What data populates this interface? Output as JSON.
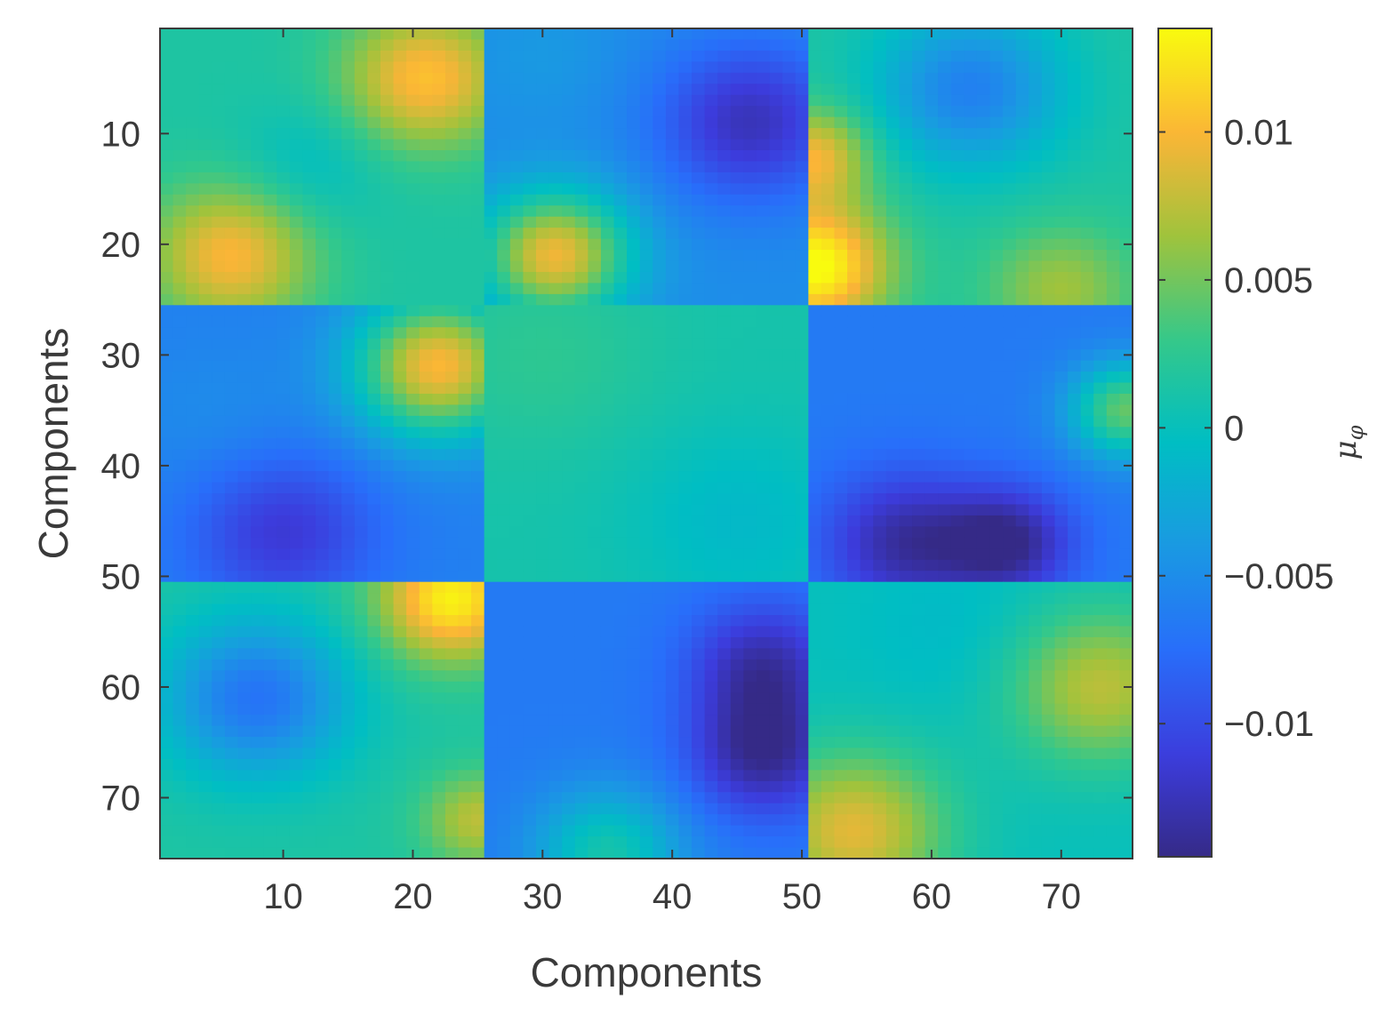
{
  "chart_data": {
    "type": "heatmap",
    "title": "",
    "xlabel": "Components",
    "ylabel": "Components",
    "colorbar_label": "μφ",
    "colorbar_label_main": "μ",
    "colorbar_label_sub": "φ",
    "colormap": "parula",
    "n_rows": 75,
    "n_cols": 75,
    "block_size": 25,
    "xlim": [
      0.5,
      75.5
    ],
    "ylim": [
      0.5,
      75.5
    ],
    "y_reversed": true,
    "clim": [
      -0.0145,
      0.0135
    ],
    "x_ticks": [
      10,
      20,
      30,
      40,
      50,
      60,
      70
    ],
    "x_tick_labels": [
      "10",
      "20",
      "30",
      "40",
      "50",
      "60",
      "70"
    ],
    "y_ticks": [
      10,
      20,
      30,
      40,
      50,
      60,
      70
    ],
    "y_tick_labels": [
      "10",
      "20",
      "30",
      "40",
      "50",
      "60",
      "70"
    ],
    "colorbar_ticks": [
      -0.01,
      -0.005,
      0,
      0.005,
      0.01
    ],
    "colorbar_tick_labels": [
      "−0.01",
      "−0.005",
      "0",
      "0.005",
      "0.01"
    ],
    "grid": false,
    "legend": "none",
    "blocks": [
      {
        "block_row": 1,
        "block_col": 1,
        "base": 0.0015,
        "features": [
          {
            "row": 5,
            "col": 21,
            "value": 0.0105,
            "spread": 4.5
          },
          {
            "row": 21,
            "col": 6,
            "value": 0.01,
            "spread": 4.5
          },
          {
            "row": 13,
            "col": 12,
            "value": -0.0008,
            "spread": 4
          }
        ]
      },
      {
        "block_row": 1,
        "block_col": 2,
        "base": -0.005,
        "features": [
          {
            "row": 9,
            "col": 46,
            "value": -0.0125,
            "spread": 5
          },
          {
            "row": 21,
            "col": 31,
            "value": 0.0095,
            "spread": 4
          },
          {
            "row": 3,
            "col": 30,
            "value": -0.004,
            "spread": 4
          }
        ]
      },
      {
        "block_row": 1,
        "block_col": 3,
        "base": 0.0015,
        "features": [
          {
            "row": 22,
            "col": 51,
            "value": 0.014,
            "spread": 4
          },
          {
            "row": 12,
            "col": 51,
            "value": 0.0095,
            "spread": 3
          },
          {
            "row": 6,
            "col": 63,
            "value": -0.006,
            "spread": 5
          },
          {
            "row": 24,
            "col": 70,
            "value": 0.0065,
            "spread": 4
          }
        ]
      },
      {
        "block_row": 2,
        "block_col": 1,
        "base": -0.006,
        "features": [
          {
            "row": 31,
            "col": 22,
            "value": 0.01,
            "spread": 4.5
          },
          {
            "row": 46,
            "col": 10,
            "value": -0.0115,
            "spread": 5
          },
          {
            "row": 36,
            "col": 5,
            "value": -0.005,
            "spread": 5
          }
        ]
      },
      {
        "block_row": 2,
        "block_col": 2,
        "base": 0.001,
        "features": [
          {
            "row": 30,
            "col": 30,
            "value": 0.0025,
            "spread": 6
          },
          {
            "row": 45,
            "col": 45,
            "value": -0.001,
            "spread": 6
          }
        ]
      },
      {
        "block_row": 2,
        "block_col": 3,
        "base": -0.0065,
        "features": [
          {
            "row": 47,
            "col": 58,
            "value": -0.0135,
            "spread": 4.5
          },
          {
            "row": 47,
            "col": 66,
            "value": -0.014,
            "spread": 3.5
          },
          {
            "row": 35,
            "col": 75,
            "value": 0.0045,
            "spread": 3
          }
        ]
      },
      {
        "block_row": 3,
        "block_col": 1,
        "base": 0.0015,
        "features": [
          {
            "row": 52,
            "col": 23,
            "value": 0.013,
            "spread": 4
          },
          {
            "row": 61,
            "col": 8,
            "value": -0.007,
            "spread": 5
          },
          {
            "row": 72,
            "col": 25,
            "value": 0.0075,
            "spread": 3
          }
        ]
      },
      {
        "block_row": 3,
        "block_col": 2,
        "base": -0.0065,
        "features": [
          {
            "row": 58,
            "col": 47,
            "value": -0.013,
            "spread": 4
          },
          {
            "row": 66,
            "col": 47,
            "value": -0.014,
            "spread": 4
          },
          {
            "row": 75,
            "col": 35,
            "value": 0.001,
            "spread": 4
          }
        ]
      },
      {
        "block_row": 3,
        "block_col": 3,
        "base": 0.0,
        "features": [
          {
            "row": 73,
            "col": 54,
            "value": 0.009,
            "spread": 5
          },
          {
            "row": 60,
            "col": 73,
            "value": 0.0075,
            "spread": 5
          },
          {
            "row": 55,
            "col": 62,
            "value": -0.001,
            "spread": 5
          }
        ]
      }
    ]
  }
}
